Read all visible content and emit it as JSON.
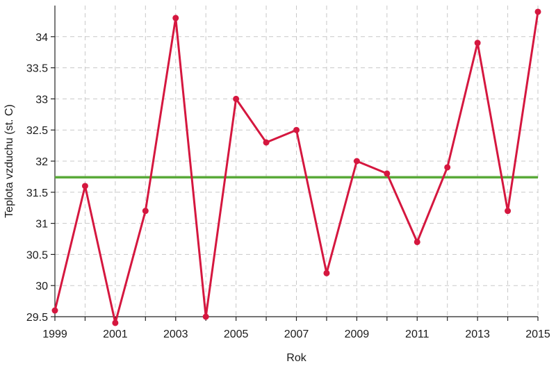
{
  "chart_data": {
    "type": "line",
    "xlabel": "Rok",
    "ylabel": "Teplota vzduchu (st. C)",
    "xlim": [
      1999,
      2015
    ],
    "ylim": [
      29.5,
      34.5
    ],
    "x_ticks": [
      1999,
      2001,
      2003,
      2005,
      2007,
      2009,
      2011,
      2013,
      2015
    ],
    "y_ticks": [
      29.5,
      30,
      30.5,
      31,
      31.5,
      32,
      32.5,
      33,
      33.5,
      34
    ],
    "x_tick_labels": [
      "1999",
      "2001",
      "2003",
      "2005",
      "2007",
      "2009",
      "2011",
      "2013",
      "2015"
    ],
    "y_tick_labels": [
      "29.5",
      "30",
      "30.5",
      "31",
      "31.5",
      "32",
      "32.5",
      "33",
      "33.5",
      "34"
    ],
    "grid": true,
    "grid_style": "dashed",
    "series": [
      {
        "color": "#d5173f",
        "x": [
          1999,
          2000,
          2001,
          2002,
          2003,
          2004,
          2005,
          2006,
          2007,
          2008,
          2009,
          2010,
          2011,
          2012,
          2013,
          2014,
          2015
        ],
        "values": [
          29.6,
          31.6,
          29.4,
          31.2,
          34.3,
          29.5,
          33.0,
          32.3,
          32.5,
          30.2,
          32.0,
          31.8,
          30.7,
          31.9,
          33.9,
          31.2,
          34.4
        ]
      }
    ],
    "reference_lines": [
      {
        "y": 31.74,
        "color": "#5aaa3a"
      }
    ]
  }
}
